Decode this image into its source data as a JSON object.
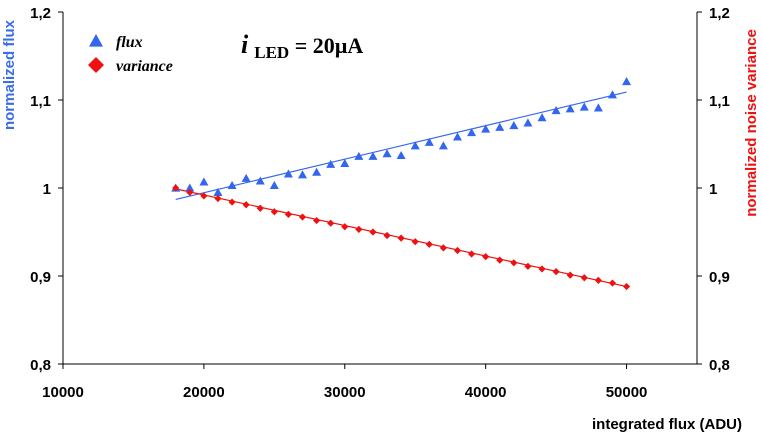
{
  "chart_data": {
    "type": "scatter",
    "title": "",
    "annotation": {
      "main": "i",
      "sub": "LED",
      "rest": " = 20µA"
    },
    "xlabel": "integrated flux (ADU)",
    "ylabel_left": "normalized flux",
    "ylabel_right": "normalized noise variance",
    "xlim": [
      10000,
      55000
    ],
    "ylim": [
      0.8,
      1.2
    ],
    "x_ticks": [
      10000,
      20000,
      30000,
      40000,
      50000
    ],
    "x_tick_labels": [
      "10000",
      "20000",
      "30000",
      "40000",
      "50000"
    ],
    "y_ticks": [
      0.8,
      0.9,
      1.0,
      1.1,
      1.2
    ],
    "y_tick_labels": [
      "0,8",
      "0,9",
      "1",
      "1,1",
      "1,2"
    ],
    "y2_tick_labels": [
      "0,8",
      "0,9",
      "1",
      "1,1",
      "1,2"
    ],
    "legend_position": "top-left",
    "series": [
      {
        "name": "flux",
        "marker": "triangle",
        "color": "#3366ee",
        "x": [
          18000,
          19000,
          20000,
          21000,
          22000,
          23000,
          24000,
          25000,
          26000,
          27000,
          28000,
          29000,
          30000,
          31000,
          32000,
          33000,
          34000,
          35000,
          36000,
          37000,
          38000,
          39000,
          40000,
          41000,
          42000,
          43000,
          44000,
          45000,
          46000,
          47000,
          48000,
          49000,
          50000
        ],
        "y": [
          1.0,
          1.0,
          1.007,
          0.995,
          1.003,
          1.011,
          1.008,
          1.003,
          1.016,
          1.015,
          1.018,
          1.027,
          1.028,
          1.036,
          1.036,
          1.039,
          1.037,
          1.048,
          1.052,
          1.048,
          1.058,
          1.063,
          1.067,
          1.069,
          1.071,
          1.074,
          1.08,
          1.088,
          1.09,
          1.092,
          1.091,
          1.106,
          1.121
        ],
        "fit": {
          "x": [
            18000,
            50000
          ],
          "y": [
            0.987,
            1.109
          ]
        }
      },
      {
        "name": "variance",
        "marker": "diamond",
        "color": "#ee1111",
        "x": [
          18000,
          19000,
          20000,
          21000,
          22000,
          23000,
          24000,
          25000,
          26000,
          27000,
          28000,
          29000,
          30000,
          31000,
          32000,
          33000,
          34000,
          35000,
          36000,
          37000,
          38000,
          39000,
          40000,
          41000,
          42000,
          43000,
          44000,
          45000,
          46000,
          47000,
          48000,
          49000,
          50000
        ],
        "y": [
          1.0,
          0.995,
          0.991,
          0.988,
          0.984,
          0.981,
          0.977,
          0.973,
          0.97,
          0.967,
          0.963,
          0.96,
          0.956,
          0.953,
          0.95,
          0.946,
          0.943,
          0.939,
          0.936,
          0.932,
          0.929,
          0.925,
          0.922,
          0.918,
          0.915,
          0.911,
          0.908,
          0.905,
          0.901,
          0.898,
          0.895,
          0.892,
          0.888
        ],
        "fit": {
          "x": [
            18000,
            50000
          ],
          "y": [
            0.999,
            0.888
          ]
        }
      }
    ]
  }
}
